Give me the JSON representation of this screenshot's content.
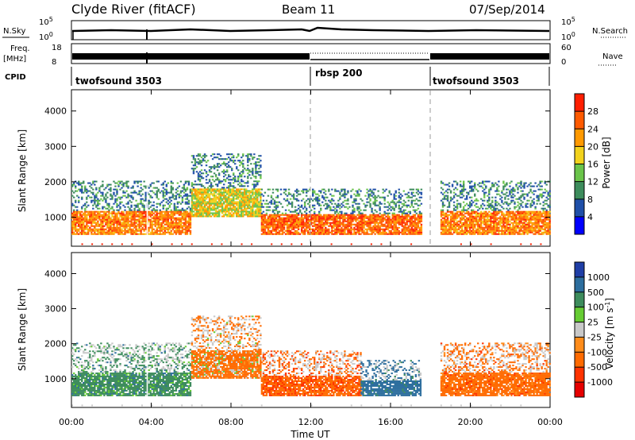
{
  "header": {
    "station": "Clyde River (fitACF)",
    "beam": "Beam 11",
    "date": "07/Sep/2014"
  },
  "top_panels": {
    "nsky_label": "N.Sky",
    "nsky_ticks": [
      "10^5",
      "10^0"
    ],
    "nsearch_label": "N.Search",
    "nsearch_ticks": [
      "10^5",
      "10^0"
    ],
    "freq_label": "Freq.",
    "freq_unit": "[MHz]",
    "freq_ticks": [
      "18",
      "8"
    ],
    "nave_label": "Nave",
    "nave_ticks": [
      "60",
      "0"
    ],
    "cpid_label": "CPID"
  },
  "cpid_segments": [
    {
      "name": "twofsound 3503",
      "start_hour": 0
    },
    {
      "name": "rbsp 200",
      "start_hour": 12
    },
    {
      "name": "twofsound 3503",
      "start_hour": 18
    }
  ],
  "time_axis": {
    "label": "Time UT",
    "ticks": [
      "00:00",
      "04:00",
      "08:00",
      "12:00",
      "16:00",
      "20:00",
      "00:00"
    ]
  },
  "colors": {
    "power_scale": [
      "#0000ff",
      "#1f4fa8",
      "#3d8c5c",
      "#6ac44a",
      "#f2d21c",
      "#ff9900",
      "#ff5a00",
      "#ff1e00",
      "#e60000"
    ],
    "velocity_scale": [
      "#1f3ea6",
      "#2d6e9e",
      "#3d8c5c",
      "#66cc33",
      "#c8c8c8",
      "#ff8c1a",
      "#ff6a00",
      "#ff3300",
      "#e60000"
    ]
  },
  "chart_data": [
    {
      "type": "heatmap",
      "panel": "power",
      "ylabel": "Slant Range [km]",
      "yticks": [
        "1000",
        "2000",
        "3000",
        "4000"
      ],
      "ylim": [
        180,
        4600
      ],
      "xlabel": "Time UT",
      "xlim_hours": [
        0,
        24
      ],
      "colorbar_label": "Power [dB]",
      "colorbar_ticks": [
        "4",
        "8",
        "12",
        "16",
        "20",
        "24",
        "28"
      ],
      "colorbar_range": [
        0,
        32
      ],
      "approx_echo_bands": [
        {
          "start_hour": 0,
          "end_hour": 6,
          "range_km": [
            500,
            2000
          ],
          "power_db": 24
        },
        {
          "start_hour": 6,
          "end_hour": 9.5,
          "range_km": [
            1000,
            2800
          ],
          "power_db": 18
        },
        {
          "start_hour": 9.5,
          "end_hour": 17.5,
          "range_km": [
            500,
            1800
          ],
          "power_db": 26
        },
        {
          "start_hour": 18.5,
          "end_hour": 24,
          "range_km": [
            500,
            2000
          ],
          "power_db": 24
        }
      ]
    },
    {
      "type": "heatmap",
      "panel": "velocity",
      "ylabel": "Slant Range [km]",
      "yticks": [
        "1000",
        "2000",
        "3000",
        "4000"
      ],
      "ylim": [
        180,
        4600
      ],
      "xlabel": "Time UT",
      "xlim_hours": [
        0,
        24
      ],
      "colorbar_label": "Velocity [m s-1]",
      "colorbar_ticks": [
        "1000",
        "500",
        "100",
        "25",
        "-25",
        "-100",
        "-500",
        "-1000"
      ],
      "approx_echo_bands": [
        {
          "start_hour": 0,
          "end_hour": 6,
          "range_km": [
            500,
            2000
          ],
          "velocity_ms": 300
        },
        {
          "start_hour": 6,
          "end_hour": 9.5,
          "range_km": [
            1000,
            2800
          ],
          "velocity_ms": -200
        },
        {
          "start_hour": 9.5,
          "end_hour": 14.5,
          "range_km": [
            500,
            1800
          ],
          "velocity_ms": -400
        },
        {
          "start_hour": 14.5,
          "end_hour": 17.5,
          "range_km": [
            500,
            1500
          ],
          "velocity_ms": 700
        },
        {
          "start_hour": 18.5,
          "end_hour": 24,
          "range_km": [
            500,
            2000
          ],
          "velocity_ms": -300
        }
      ]
    }
  ]
}
